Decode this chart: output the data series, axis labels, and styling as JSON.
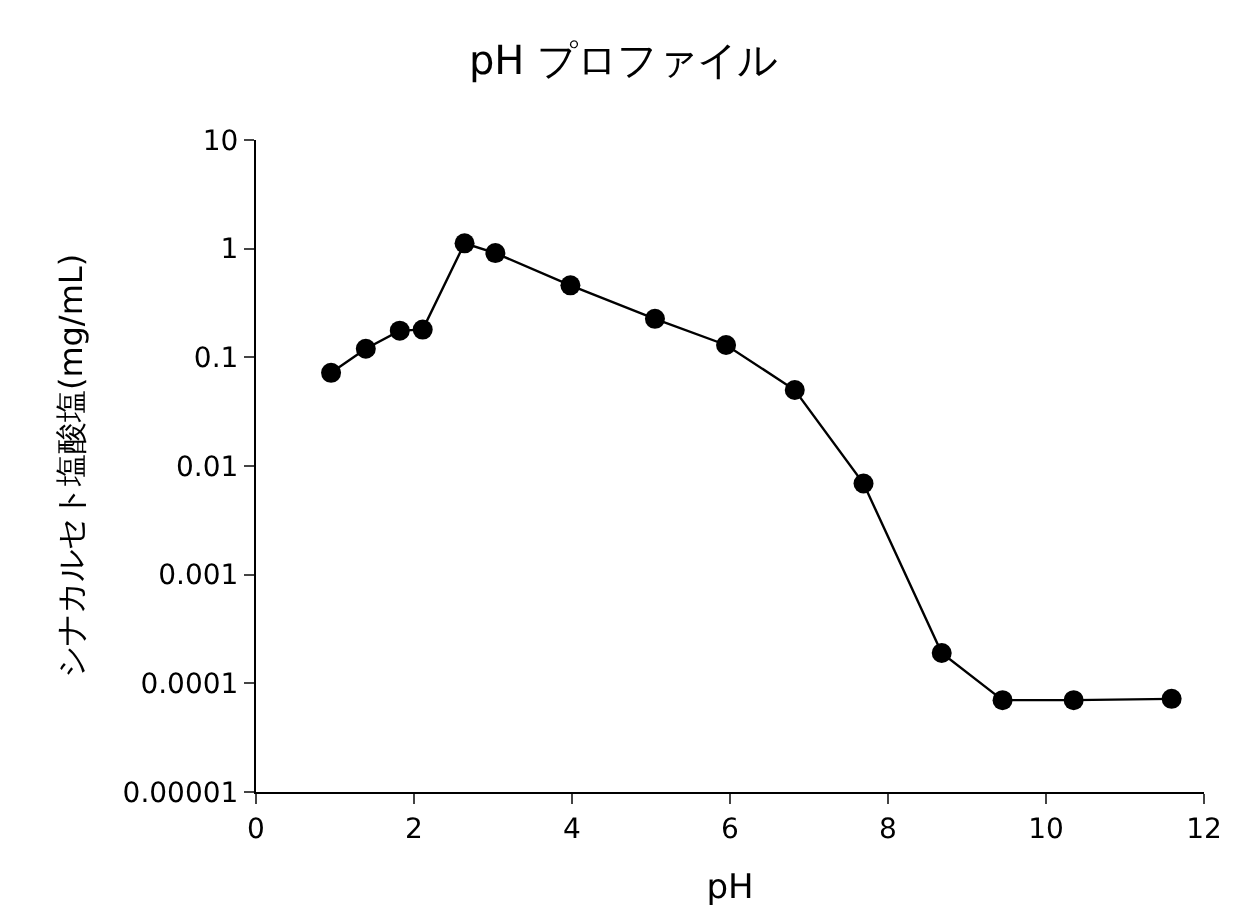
{
  "chart_data": {
    "type": "line",
    "title": "pH プロファイル",
    "xlabel": "pH",
    "ylabel": "シナカルセト塩酸塩(mg/mL)",
    "x": [
      0.95,
      1.39,
      1.82,
      2.11,
      2.64,
      3.03,
      3.98,
      5.05,
      5.95,
      6.82,
      7.69,
      8.68,
      9.45,
      10.35,
      11.59
    ],
    "series": [
      {
        "color": "#000000",
        "values": [
          0.072,
          0.12,
          0.176,
          0.18,
          1.12,
          0.91,
          0.46,
          0.226,
          0.13,
          0.05,
          0.0069,
          0.00019,
          7e-05,
          7e-05,
          7.2e-05
        ]
      }
    ],
    "xlim": [
      0,
      12
    ],
    "xticks": [
      0,
      2,
      4,
      6,
      8,
      10,
      12
    ],
    "ylim": [
      1e-05,
      10
    ],
    "yticks": [
      {
        "value": 1e-05,
        "label": "0.00001"
      },
      {
        "value": 0.0001,
        "label": "0.0001"
      },
      {
        "value": 0.001,
        "label": "0.001"
      },
      {
        "value": 0.01,
        "label": "0.01"
      },
      {
        "value": 0.1,
        "label": "0.1"
      },
      {
        "value": 1,
        "label": "1"
      },
      {
        "value": 10,
        "label": "10"
      }
    ],
    "log": "y",
    "marker": "circle",
    "line_style": "solid"
  }
}
